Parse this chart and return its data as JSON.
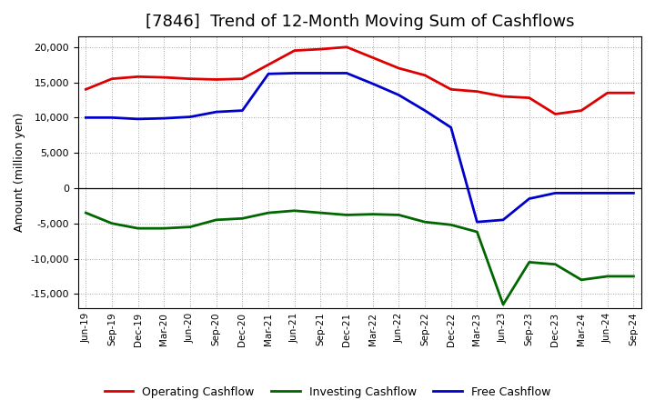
{
  "title": "[7846]  Trend of 12-Month Moving Sum of Cashflows",
  "ylabel": "Amount (million yen)",
  "xlabels": [
    "Jun-19",
    "Sep-19",
    "Dec-19",
    "Mar-20",
    "Jun-20",
    "Sep-20",
    "Dec-20",
    "Mar-21",
    "Jun-21",
    "Sep-21",
    "Dec-21",
    "Mar-22",
    "Jun-22",
    "Sep-22",
    "Dec-22",
    "Mar-23",
    "Jun-23",
    "Sep-23",
    "Dec-23",
    "Mar-24",
    "Jun-24",
    "Sep-24"
  ],
  "operating": [
    14000,
    15500,
    15800,
    15700,
    15500,
    15400,
    15500,
    17500,
    19500,
    19700,
    20000,
    18500,
    17000,
    16000,
    14000,
    13700,
    13000,
    12800,
    10500,
    11000,
    13500,
    13500
  ],
  "investing": [
    -3500,
    -5000,
    -5700,
    -5700,
    -5500,
    -4500,
    -4300,
    -3500,
    -3200,
    -3500,
    -3800,
    -3700,
    -3800,
    -4800,
    -5200,
    -6200,
    -16500,
    -10500,
    -10800,
    -13000,
    -12500,
    -12500
  ],
  "free": [
    10000,
    10000,
    9800,
    9900,
    10100,
    10800,
    11000,
    16200,
    16300,
    16300,
    16300,
    14800,
    13200,
    11000,
    8600,
    -4800,
    -4500,
    -1500,
    -700,
    -700,
    -700,
    -700
  ],
  "operating_color": "#dd0000",
  "investing_color": "#006600",
  "free_color": "#0000cc",
  "ylim": [
    -17000,
    21500
  ],
  "yticks": [
    -15000,
    -10000,
    -5000,
    0,
    5000,
    10000,
    15000,
    20000
  ],
  "background_color": "#ffffff",
  "grid_color": "#888888",
  "title_fontsize": 13,
  "linewidth": 2.0
}
